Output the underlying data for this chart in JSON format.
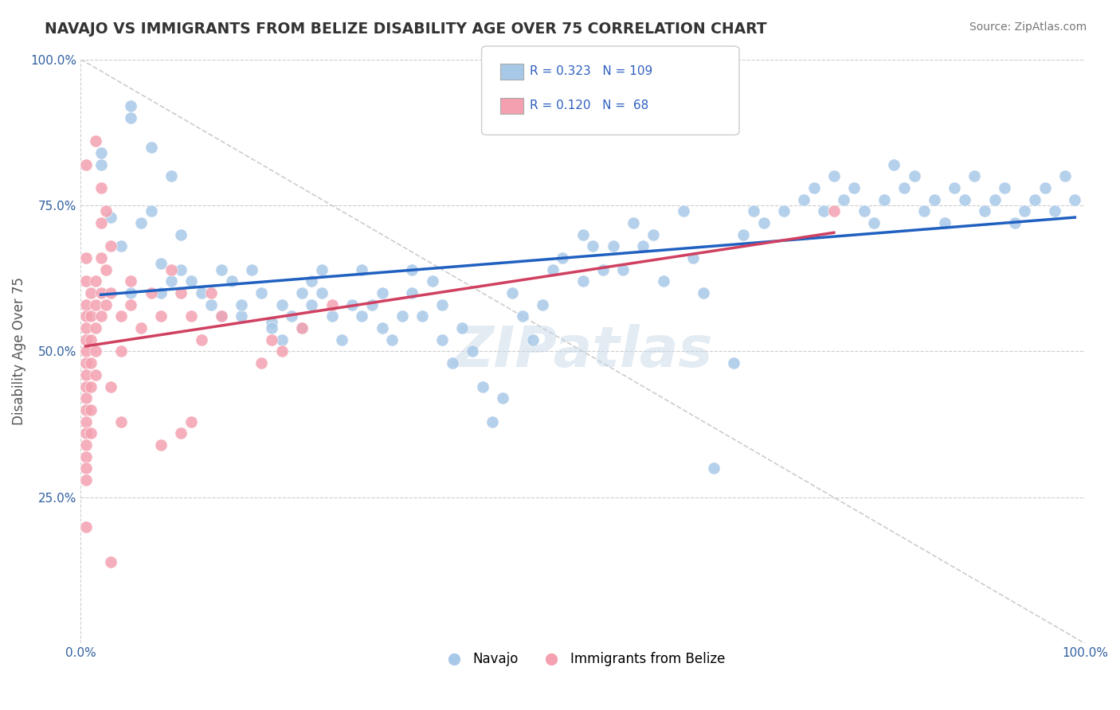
{
  "title": "NAVAJO VS IMMIGRANTS FROM BELIZE DISABILITY AGE OVER 75 CORRELATION CHART",
  "source": "Source: ZipAtlas.com",
  "xlabel": "",
  "ylabel": "Disability Age Over 75",
  "xlim": [
    0.0,
    1.0
  ],
  "ylim": [
    0.0,
    1.0
  ],
  "xtick_labels": [
    "0.0%",
    "100.0%"
  ],
  "ytick_labels": [
    "25.0%",
    "50.0%",
    "75.0%",
    "100.0%"
  ],
  "ytick_positions": [
    0.25,
    0.5,
    0.75,
    1.0
  ],
  "legend_navajo_R": "0.323",
  "legend_navajo_N": "109",
  "legend_belize_R": "0.120",
  "legend_belize_N": "68",
  "navajo_color": "#a8c8e8",
  "belize_color": "#f4a0b0",
  "navajo_line_color": "#2060c0",
  "belize_line_color": "#d04060",
  "legend_R_color": "#3060c0",
  "watermark": "ZIPatlas",
  "navajo_scatter": [
    [
      0.02,
      0.82
    ],
    [
      0.02,
      0.84
    ],
    [
      0.03,
      0.73
    ],
    [
      0.04,
      0.68
    ],
    [
      0.05,
      0.6
    ],
    [
      0.06,
      0.72
    ],
    [
      0.07,
      0.74
    ],
    [
      0.08,
      0.65
    ],
    [
      0.08,
      0.6
    ],
    [
      0.09,
      0.62
    ],
    [
      0.1,
      0.7
    ],
    [
      0.1,
      0.64
    ],
    [
      0.11,
      0.62
    ],
    [
      0.12,
      0.6
    ],
    [
      0.13,
      0.58
    ],
    [
      0.14,
      0.64
    ],
    [
      0.14,
      0.56
    ],
    [
      0.15,
      0.62
    ],
    [
      0.16,
      0.56
    ],
    [
      0.16,
      0.58
    ],
    [
      0.17,
      0.64
    ],
    [
      0.18,
      0.6
    ],
    [
      0.19,
      0.55
    ],
    [
      0.19,
      0.54
    ],
    [
      0.2,
      0.58
    ],
    [
      0.2,
      0.52
    ],
    [
      0.21,
      0.56
    ],
    [
      0.22,
      0.6
    ],
    [
      0.22,
      0.54
    ],
    [
      0.23,
      0.58
    ],
    [
      0.23,
      0.62
    ],
    [
      0.24,
      0.64
    ],
    [
      0.24,
      0.6
    ],
    [
      0.25,
      0.56
    ],
    [
      0.26,
      0.52
    ],
    [
      0.27,
      0.58
    ],
    [
      0.28,
      0.56
    ],
    [
      0.28,
      0.64
    ],
    [
      0.29,
      0.58
    ],
    [
      0.3,
      0.6
    ],
    [
      0.3,
      0.54
    ],
    [
      0.31,
      0.52
    ],
    [
      0.32,
      0.56
    ],
    [
      0.33,
      0.6
    ],
    [
      0.33,
      0.64
    ],
    [
      0.34,
      0.56
    ],
    [
      0.35,
      0.62
    ],
    [
      0.36,
      0.52
    ],
    [
      0.36,
      0.58
    ],
    [
      0.37,
      0.48
    ],
    [
      0.38,
      0.54
    ],
    [
      0.39,
      0.5
    ],
    [
      0.4,
      0.44
    ],
    [
      0.41,
      0.38
    ],
    [
      0.42,
      0.42
    ],
    [
      0.43,
      0.6
    ],
    [
      0.44,
      0.56
    ],
    [
      0.45,
      0.52
    ],
    [
      0.46,
      0.58
    ],
    [
      0.47,
      0.64
    ],
    [
      0.48,
      0.66
    ],
    [
      0.5,
      0.62
    ],
    [
      0.5,
      0.7
    ],
    [
      0.51,
      0.68
    ],
    [
      0.52,
      0.64
    ],
    [
      0.53,
      0.68
    ],
    [
      0.54,
      0.64
    ],
    [
      0.55,
      0.72
    ],
    [
      0.56,
      0.68
    ],
    [
      0.57,
      0.7
    ],
    [
      0.58,
      0.62
    ],
    [
      0.6,
      0.74
    ],
    [
      0.61,
      0.66
    ],
    [
      0.62,
      0.6
    ],
    [
      0.63,
      0.3
    ],
    [
      0.65,
      0.48
    ],
    [
      0.66,
      0.7
    ],
    [
      0.67,
      0.74
    ],
    [
      0.68,
      0.72
    ],
    [
      0.7,
      0.74
    ],
    [
      0.72,
      0.76
    ],
    [
      0.73,
      0.78
    ],
    [
      0.74,
      0.74
    ],
    [
      0.75,
      0.8
    ],
    [
      0.76,
      0.76
    ],
    [
      0.77,
      0.78
    ],
    [
      0.78,
      0.74
    ],
    [
      0.79,
      0.72
    ],
    [
      0.8,
      0.76
    ],
    [
      0.81,
      0.82
    ],
    [
      0.82,
      0.78
    ],
    [
      0.83,
      0.8
    ],
    [
      0.84,
      0.74
    ],
    [
      0.85,
      0.76
    ],
    [
      0.86,
      0.72
    ],
    [
      0.87,
      0.78
    ],
    [
      0.88,
      0.76
    ],
    [
      0.89,
      0.8
    ],
    [
      0.9,
      0.74
    ],
    [
      0.91,
      0.76
    ],
    [
      0.92,
      0.78
    ],
    [
      0.93,
      0.72
    ],
    [
      0.94,
      0.74
    ],
    [
      0.95,
      0.76
    ],
    [
      0.96,
      0.78
    ],
    [
      0.97,
      0.74
    ],
    [
      0.98,
      0.8
    ],
    [
      0.99,
      0.76
    ],
    [
      0.05,
      0.9
    ],
    [
      0.05,
      0.92
    ],
    [
      0.07,
      0.85
    ],
    [
      0.09,
      0.8
    ]
  ],
  "belize_scatter": [
    [
      0.005,
      0.66
    ],
    [
      0.005,
      0.62
    ],
    [
      0.005,
      0.58
    ],
    [
      0.005,
      0.56
    ],
    [
      0.005,
      0.54
    ],
    [
      0.005,
      0.52
    ],
    [
      0.005,
      0.5
    ],
    [
      0.005,
      0.48
    ],
    [
      0.005,
      0.46
    ],
    [
      0.005,
      0.44
    ],
    [
      0.005,
      0.42
    ],
    [
      0.005,
      0.4
    ],
    [
      0.005,
      0.38
    ],
    [
      0.005,
      0.36
    ],
    [
      0.005,
      0.34
    ],
    [
      0.005,
      0.32
    ],
    [
      0.005,
      0.3
    ],
    [
      0.005,
      0.28
    ],
    [
      0.01,
      0.6
    ],
    [
      0.01,
      0.56
    ],
    [
      0.01,
      0.52
    ],
    [
      0.01,
      0.48
    ],
    [
      0.01,
      0.44
    ],
    [
      0.01,
      0.4
    ],
    [
      0.01,
      0.36
    ],
    [
      0.015,
      0.62
    ],
    [
      0.015,
      0.58
    ],
    [
      0.015,
      0.54
    ],
    [
      0.015,
      0.5
    ],
    [
      0.015,
      0.46
    ],
    [
      0.02,
      0.72
    ],
    [
      0.02,
      0.66
    ],
    [
      0.02,
      0.6
    ],
    [
      0.02,
      0.56
    ],
    [
      0.025,
      0.64
    ],
    [
      0.025,
      0.58
    ],
    [
      0.03,
      0.68
    ],
    [
      0.03,
      0.6
    ],
    [
      0.04,
      0.56
    ],
    [
      0.04,
      0.5
    ],
    [
      0.05,
      0.62
    ],
    [
      0.05,
      0.58
    ],
    [
      0.06,
      0.54
    ],
    [
      0.07,
      0.6
    ],
    [
      0.08,
      0.56
    ],
    [
      0.09,
      0.64
    ],
    [
      0.1,
      0.6
    ],
    [
      0.11,
      0.56
    ],
    [
      0.12,
      0.52
    ],
    [
      0.13,
      0.6
    ],
    [
      0.14,
      0.56
    ],
    [
      0.015,
      0.86
    ],
    [
      0.02,
      0.78
    ],
    [
      0.025,
      0.74
    ],
    [
      0.005,
      0.82
    ],
    [
      0.005,
      0.2
    ],
    [
      0.03,
      0.44
    ],
    [
      0.04,
      0.38
    ],
    [
      0.03,
      0.14
    ],
    [
      0.19,
      0.52
    ],
    [
      0.2,
      0.5
    ],
    [
      0.22,
      0.54
    ],
    [
      0.25,
      0.58
    ],
    [
      0.1,
      0.36
    ],
    [
      0.11,
      0.38
    ],
    [
      0.18,
      0.48
    ],
    [
      0.08,
      0.34
    ],
    [
      0.75,
      0.74
    ]
  ]
}
